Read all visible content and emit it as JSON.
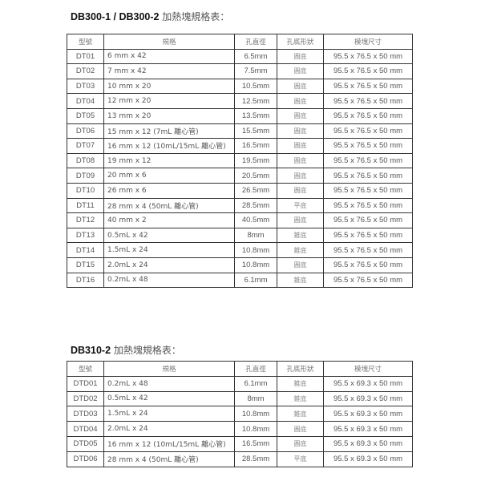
{
  "section1": {
    "title_model": "DB300-1 / DB300-2",
    "title_text": " 加熱塊規格表：",
    "headers": [
      "型號",
      "規格",
      "孔直徑",
      "孔底形狀",
      "模塊尺寸"
    ],
    "rows": [
      [
        "DT01",
        "6 mm x 42",
        "6.5mm",
        "圓底",
        "95.5 x 76.5 x 50 mm"
      ],
      [
        "DT02",
        "7 mm x 42",
        "7.5mm",
        "圓底",
        "95.5 x 76.5 x 50 mm"
      ],
      [
        "DT03",
        "10 mm x 20",
        "10.5mm",
        "圓底",
        "95.5 x 76.5 x 50 mm"
      ],
      [
        "DT04",
        "12 mm x 20",
        "12.5mm",
        "圓底",
        "95.5 x 76.5 x 50 mm"
      ],
      [
        "DT05",
        "13 mm x 20",
        "13.5mm",
        "圓底",
        "95.5 x 76.5 x 50 mm"
      ],
      [
        "DT06",
        "15 mm x 12 (7mL 離心管)",
        "15.5mm",
        "圓底",
        "95.5 x 76.5 x 50 mm"
      ],
      [
        "DT07",
        "16 mm x 12 (10mL/15mL 離心管)",
        "16.5mm",
        "圓底",
        "95.5 x 76.5 x 50 mm"
      ],
      [
        "DT08",
        "19 mm x 12",
        "19.5mm",
        "圓底",
        "95.5 x 76.5 x 50 mm"
      ],
      [
        "DT09",
        "20 mm x 6",
        "20.5mm",
        "圓底",
        "95.5 x 76.5 x 50 mm"
      ],
      [
        "DT10",
        "26 mm x 6",
        "26.5mm",
        "圓底",
        "95.5 x 76.5 x 50 mm"
      ],
      [
        "DT11",
        "28 mm x 4 (50mL 離心管)",
        "28.5mm",
        "平底",
        "95.5 x 76.5 x 50 mm"
      ],
      [
        "DT12",
        "40 mm x 2",
        "40.5mm",
        "圓底",
        "95.5 x 76.5 x 50 mm"
      ],
      [
        "DT13",
        "0.5mL x 42",
        "8mm",
        "錐底",
        "95.5 x 76.5 x 50 mm"
      ],
      [
        "DT14",
        "1.5mL x 24",
        "10.8mm",
        "錐底",
        "95.5 x 76.5 x 50 mm"
      ],
      [
        "DT15",
        "2.0mL x 24",
        "10.8mm",
        "圓底",
        "95.5 x 76.5 x 50 mm"
      ],
      [
        "DT16",
        "0.2mL x 48",
        "6.1mm",
        "錐底",
        "95.5 x 76.5 x 50 mm"
      ]
    ]
  },
  "section2": {
    "title_model": "DB310-2",
    "title_text": " 加熱塊規格表：",
    "headers": [
      "型號",
      "規格",
      "孔直徑",
      "孔底形狀",
      "模塊尺寸"
    ],
    "rows": [
      [
        "DTD01",
        "0.2mL x 48",
        "6.1mm",
        "錐底",
        "95.5 x 69.3 x 50 mm"
      ],
      [
        "DTD02",
        "0.5mL x 42",
        "8mm",
        "錐底",
        "95.5 x 69.3 x 50 mm"
      ],
      [
        "DTD03",
        "1.5mL x 24",
        "10.8mm",
        "錐底",
        "95.5 x 69.3 x 50 mm"
      ],
      [
        "DTD04",
        "2.0mL x 24",
        "10.8mm",
        "圓底",
        "95.5 x 69.3 x 50 mm"
      ],
      [
        "DTD05",
        "16 mm x 12 (10mL/15mL 離心管)",
        "16.5mm",
        "圓底",
        "95.5 x 69.3 x 50 mm"
      ],
      [
        "DTD06",
        "28 mm x 4 (50mL 離心管)",
        "28.5mm",
        "平底",
        "95.5 x 69.3 x 50 mm"
      ]
    ]
  }
}
